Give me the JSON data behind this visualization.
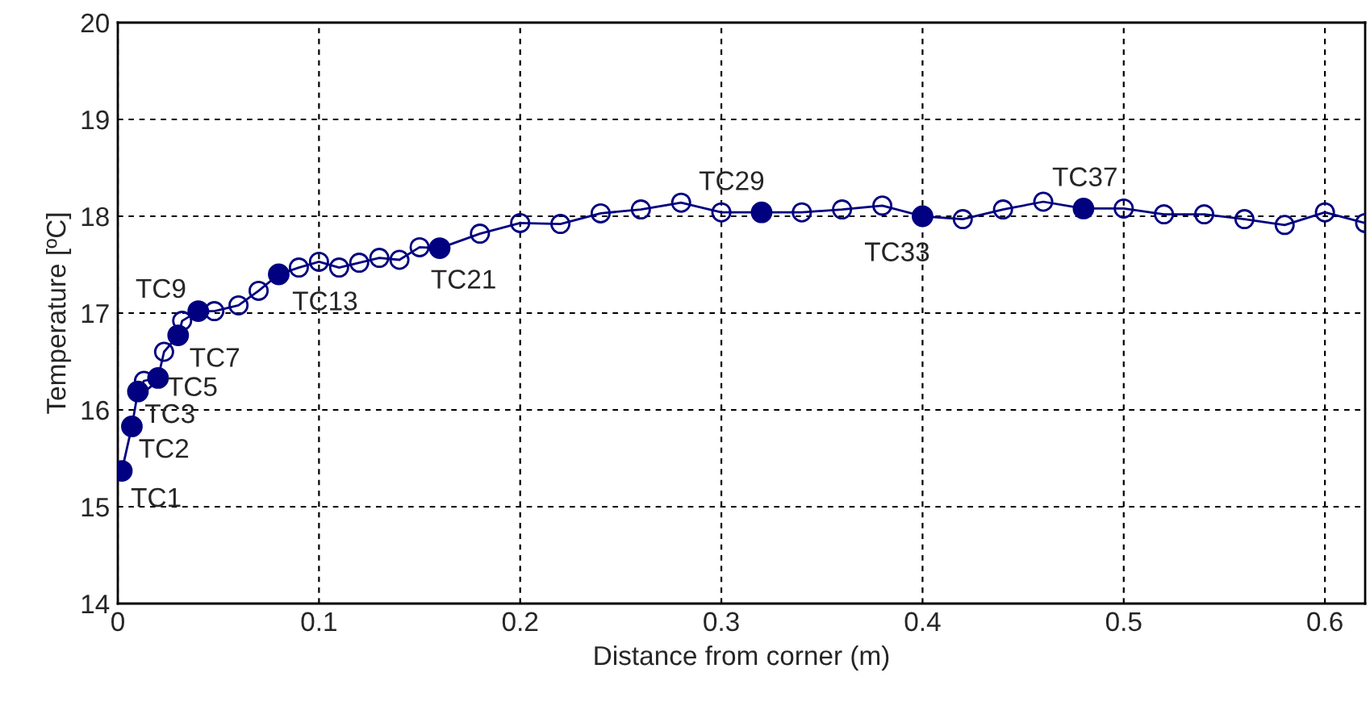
{
  "chart_data": {
    "type": "line",
    "xlabel": "Distance from corner (m)",
    "ylabel": "Temperature [ºC]",
    "xlim": [
      0,
      0.62
    ],
    "ylim": [
      14,
      20
    ],
    "xticks": [
      0,
      0.1,
      0.2,
      0.3,
      0.4,
      0.5,
      0.6
    ],
    "yticks": [
      14,
      15,
      16,
      17,
      18,
      19,
      20
    ],
    "grid": true,
    "legend": false,
    "series": [
      {
        "marker": "circle",
        "color": "#000080",
        "x": [
          0.002,
          0.007,
          0.01,
          0.013,
          0.02,
          0.023,
          0.03,
          0.032,
          0.04,
          0.048,
          0.06,
          0.07,
          0.08,
          0.09,
          0.1,
          0.11,
          0.12,
          0.13,
          0.14,
          0.15,
          0.16,
          0.18,
          0.2,
          0.22,
          0.24,
          0.26,
          0.28,
          0.3,
          0.32,
          0.34,
          0.36,
          0.38,
          0.4,
          0.42,
          0.44,
          0.46,
          0.48,
          0.5,
          0.52,
          0.54,
          0.56,
          0.58,
          0.6,
          0.62
        ],
        "values": [
          15.37,
          15.83,
          16.19,
          16.3,
          16.33,
          16.6,
          16.77,
          16.92,
          17.02,
          17.02,
          17.08,
          17.23,
          17.4,
          17.47,
          17.53,
          17.47,
          17.52,
          17.57,
          17.55,
          17.68,
          17.67,
          17.82,
          17.93,
          17.92,
          18.03,
          18.07,
          18.14,
          18.04,
          18.04,
          18.04,
          18.07,
          18.11,
          18.0,
          17.97,
          18.07,
          18.15,
          18.08,
          18.08,
          18.02,
          18.02,
          17.97,
          17.91,
          18.04,
          17.93
        ]
      },
      {
        "type": "scatter",
        "marker": "circle",
        "color": "#000080",
        "x": [
          0.002,
          0.007,
          0.01,
          0.02,
          0.03,
          0.04,
          0.08,
          0.16,
          0.32,
          0.4,
          0.48
        ],
        "values": [
          15.37,
          15.83,
          16.19,
          16.33,
          16.77,
          17.02,
          17.4,
          17.67,
          18.04,
          18.0,
          18.08
        ]
      }
    ],
    "annotations": [
      {
        "text": "TC1",
        "x": 0.002,
        "y": 15.37
      },
      {
        "text": "TC2",
        "x": 0.007,
        "y": 15.83
      },
      {
        "text": "TC3",
        "x": 0.01,
        "y": 16.19
      },
      {
        "text": "TC5",
        "x": 0.02,
        "y": 16.33
      },
      {
        "text": "TC7",
        "x": 0.03,
        "y": 16.77
      },
      {
        "text": "TC9",
        "x": 0.04,
        "y": 17.02
      },
      {
        "text": "TC13",
        "x": 0.08,
        "y": 17.4
      },
      {
        "text": "TC21",
        "x": 0.16,
        "y": 17.67
      },
      {
        "text": "TC29",
        "x": 0.32,
        "y": 18.04
      },
      {
        "text": "TC33",
        "x": 0.4,
        "y": 18.0
      },
      {
        "text": "TC37",
        "x": 0.48,
        "y": 18.08
      }
    ]
  }
}
